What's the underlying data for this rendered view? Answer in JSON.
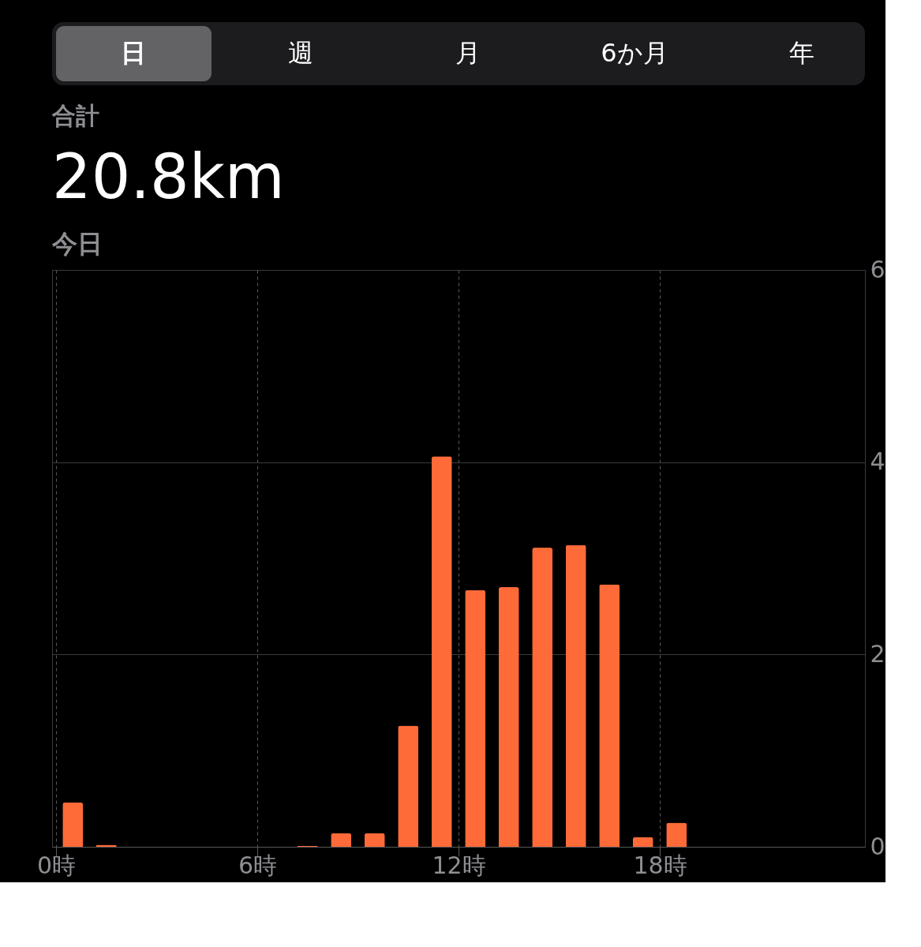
{
  "chart_data": {
    "type": "bar",
    "annotations": [
      "日",
      "週",
      "月",
      "6か月",
      "年",
      "合計",
      "20.8km",
      "今日"
    ],
    "x": [
      0.5,
      1.5,
      7.5,
      8.5,
      9.5,
      10.5,
      11.5,
      12.5,
      13.5,
      14.5,
      15.5,
      16.5,
      17.5,
      18.5
    ],
    "values": [
      0.46,
      0.02,
      0.01,
      0.14,
      0.14,
      1.26,
      4.06,
      2.67,
      2.7,
      3.11,
      3.14,
      2.73,
      0.1,
      0.25
    ],
    "color": "#ff6a39",
    "xlim": [
      0,
      24
    ],
    "xticks": [
      {
        "value": 0,
        "label": "0時"
      },
      {
        "value": 6,
        "label": "6時"
      },
      {
        "value": 12,
        "label": "12時"
      },
      {
        "value": 18,
        "label": "18時"
      }
    ],
    "ylim": [
      0,
      6
    ],
    "yticks": [
      0,
      2,
      4,
      6
    ],
    "grid": true
  }
}
